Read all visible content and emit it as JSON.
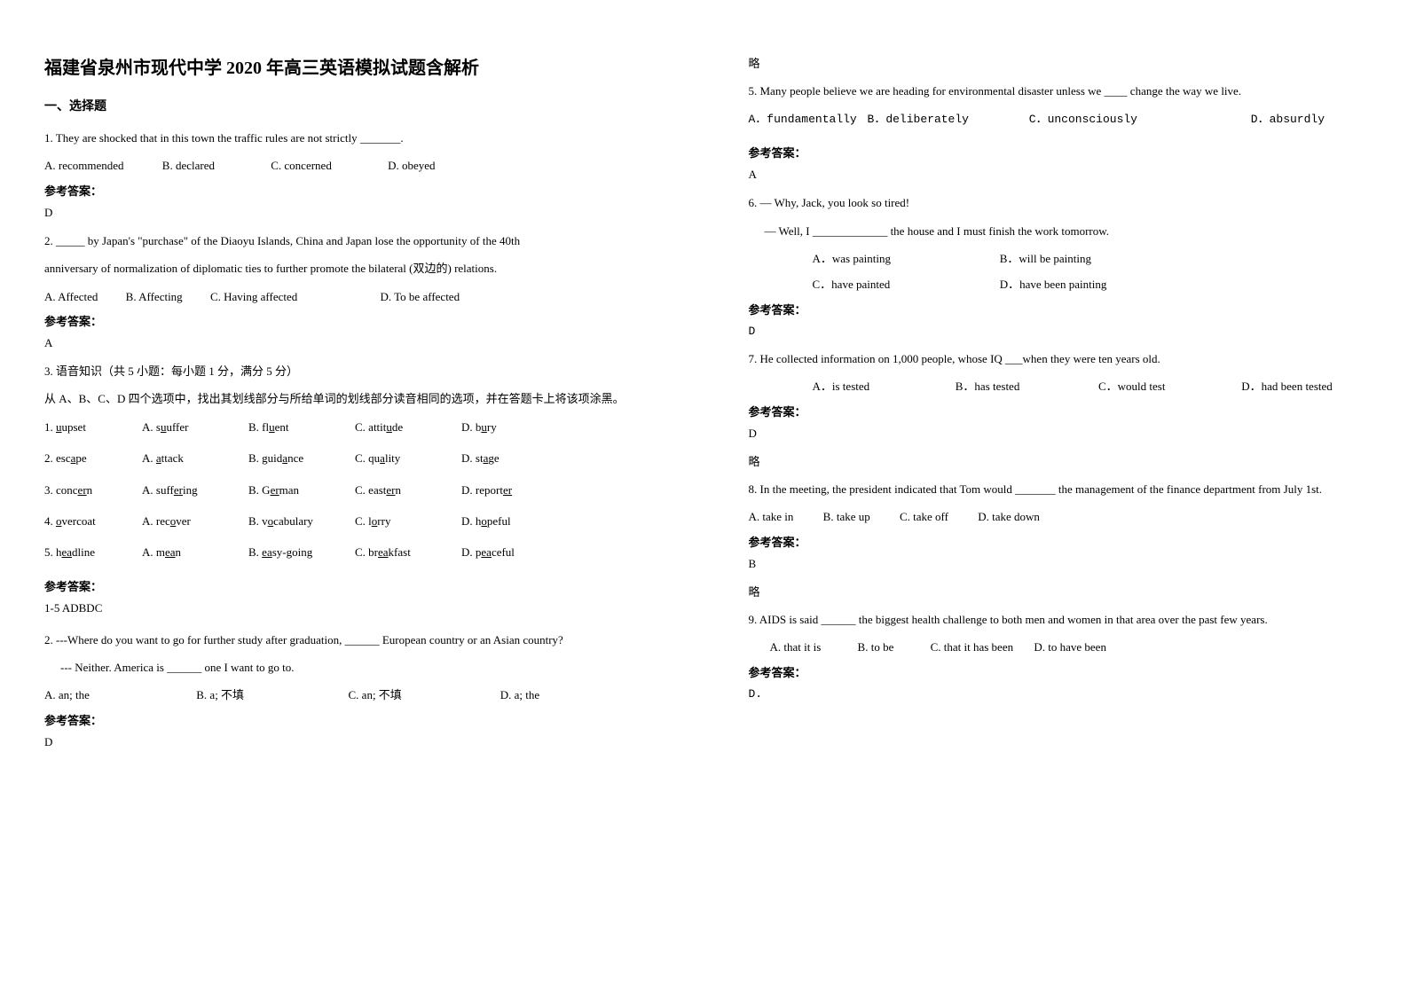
{
  "title": "福建省泉州市现代中学 2020 年高三英语模拟试题含解析",
  "section1": "一、选择题",
  "q1": {
    "text": "1. They are shocked that in this town the traffic rules are not strictly _______.",
    "optA": "A. recommended",
    "optB": "B. declared",
    "optC": "C. concerned",
    "optD": "D. obeyed",
    "answerLabel": "参考答案：",
    "answer": "D"
  },
  "q2": {
    "line1": "2. _____ by Japan's \"purchase\" of the Diaoyu Islands, China and Japan lose the opportunity of the 40th",
    "line2": "anniversary of normalization of diplomatic ties to further promote the bilateral (双边的) relations.",
    "optA": "A. Affected",
    "optB": "B. Affecting",
    "optC": "C. Having affected",
    "optD": "D. To be affected",
    "answerLabel": "参考答案：",
    "answer": "A"
  },
  "q3": {
    "heading": "3. 语音知识（共 5 小题：每小题 1 分，满分 5 分）",
    "instruction": "从 A、B、C、D 四个选项中，找出其划线部分与所给单词的划线部分读音相同的选项，并在答题卡上将该项涂黑。",
    "rows": [
      {
        "q": "1. ",
        "qw": "upset",
        "qu": "u",
        "a": "A. s",
        "aw": "uffer",
        "au": "u",
        "b": "B. fl",
        "bw": "ent",
        "bu": "u",
        "c": "C. attit",
        "cw": "de",
        "cu": "u",
        "d": "D. b",
        "dw": "ry",
        "du": "u"
      },
      {
        "q": "2. esc",
        "qw": "pe",
        "qu": "a",
        "a": "A. ",
        "aw": "ttack",
        "au": "a",
        "b": "B. guid",
        "bw": "nce",
        "bu": "a",
        "c": "C. qu",
        "cw": "lity",
        "cu": "a",
        "d": "D. st",
        "dw": "ge",
        "du": "a"
      },
      {
        "q": "3. conc",
        "qw": "n",
        "qu": "er",
        "a": "A. suff",
        "aw": "ing",
        "au": "er",
        "b": "B. G",
        "bw": "man",
        "bu": "er",
        "c": "C. east",
        "cw": "n",
        "cu": "er",
        "d": "D. report",
        "dw": "",
        "du": "er"
      },
      {
        "q": "4. ",
        "qw": "vercoat",
        "qu": "o",
        "a": "A. rec",
        "aw": "ver",
        "au": "o",
        "b": "B. v",
        "bw": "cabulary",
        "bu": "o",
        "c": "C. l",
        "cw": "rry",
        "cu": "o",
        "d": "D. h",
        "dw": "peful",
        "du": "o"
      },
      {
        "q": "5. h",
        "qw": "dline",
        "qu": "ea",
        "a": "A. m",
        "aw": "n",
        "au": "ea",
        "b": "B. ",
        "bw": "sy-going",
        "bu": "ea",
        "c": "C. br",
        "cw": "kfast",
        "cu": "ea",
        "d": "D. p",
        "dw": "ceful",
        "du": "ea"
      }
    ],
    "answerLabel": "参考答案：",
    "answer": "1-5 ADBDC"
  },
  "q2b": {
    "line1": "2. ---Where do you want to go for further study after graduation, ______ European country or an Asian country?",
    "line2": "--- Neither. America is ______ one I want to go to.",
    "optA": "A. an; the",
    "optB": "B. a; 不填",
    "optC": "C. an; 不填",
    "optD": "D. a; the",
    "answerLabel": "参考答案：",
    "answer": "D"
  },
  "lue": "略",
  "q5": {
    "text": "5. Many people believe we are heading for environmental disaster unless we ____ change the way we live.",
    "optA": "A．fundamentally",
    "optB": "B．deliberately",
    "optC": "C．unconsciously",
    "optD": "D．absurdly",
    "answerLabel": "参考答案：",
    "answer": "A"
  },
  "q6": {
    "line1": "6. — Why, Jack, you look so tired!",
    "line2": "— Well, I _____________ the house and I must finish the work tomorrow.",
    "optA": "A．was painting",
    "optB": "B．will be painting",
    "optC": "C．have painted",
    "optD": "D．have been painting",
    "answerLabel": "参考答案：",
    "answer": "D"
  },
  "q7": {
    "text": "7. He collected information on 1,000 people, whose IQ ___when they were ten years old.",
    "optA": "A．is tested",
    "optB": "B．has tested",
    "optC": "C．would test",
    "optD": "D．had been tested",
    "answerLabel": "参考答案：",
    "answer": "D",
    "lue": "略"
  },
  "q8": {
    "text": "8. In the meeting, the president indicated that Tom would _______ the management of the finance department from July 1st.",
    "optA": "A. take in",
    "optB": "B. take up",
    "optC": "C. take off",
    "optD": "D. take down",
    "answerLabel": "参考答案：",
    "answer": "B",
    "lue": "略"
  },
  "q9": {
    "text": "9. AIDS is said ______ the biggest health challenge to both men and women in that area over the past few years.",
    "optA": "A. that it is",
    "optB": "B. to be",
    "optC": "C. that it has been",
    "optD": "D. to have been",
    "answerLabel": "参考答案：",
    "answer": "D."
  }
}
